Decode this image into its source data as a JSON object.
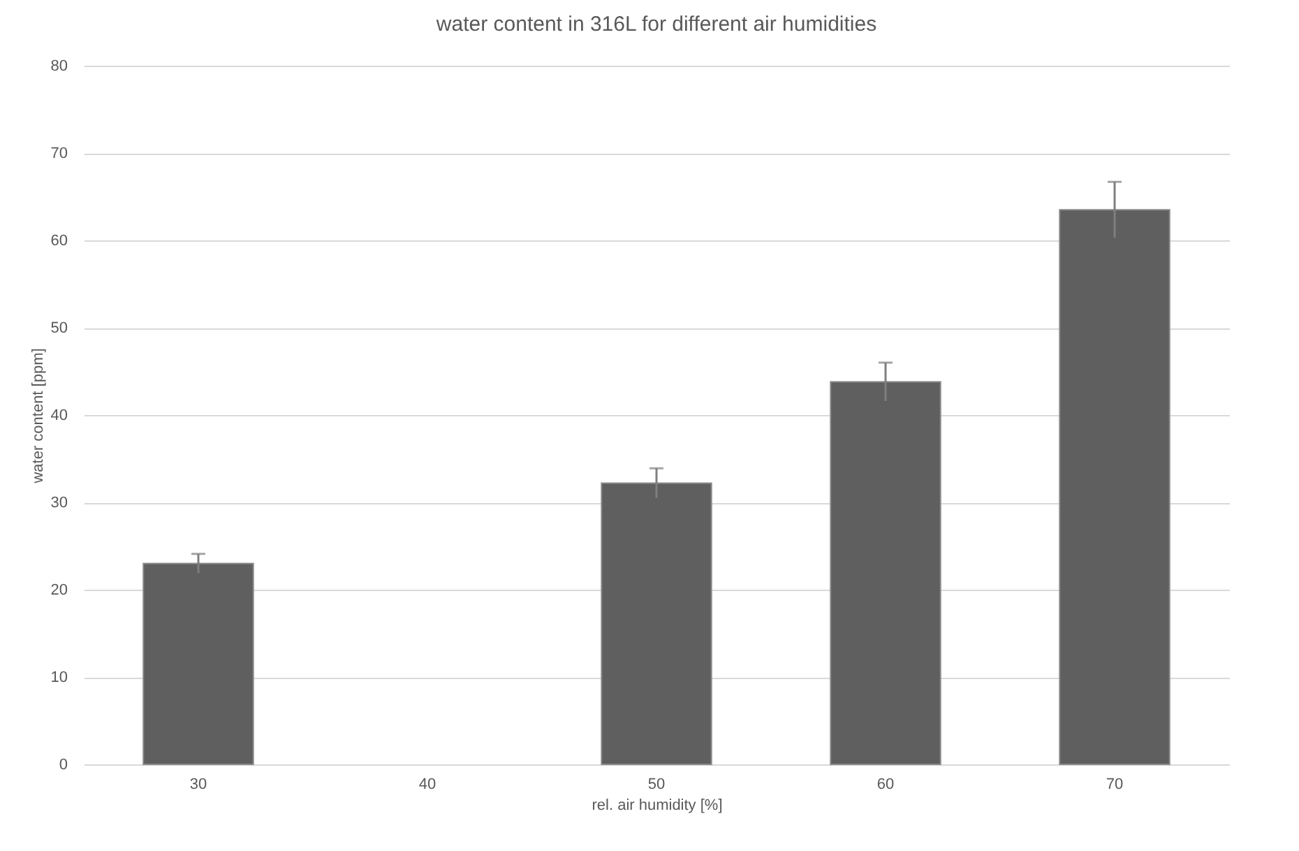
{
  "chart_data": {
    "type": "bar",
    "title": "water content in 316L for different air humidities",
    "xlabel": "rel. air humidity [%]",
    "ylabel": "water content [ppm]",
    "categories": [
      "30",
      "40",
      "50",
      "60",
      "70"
    ],
    "values": [
      23,
      null,
      32.2,
      43.8,
      63.5
    ],
    "errors": [
      1.1,
      null,
      1.7,
      2.2,
      3.2
    ],
    "color": "#5f5f5f",
    "ylim": [
      0,
      80
    ],
    "yticks": [
      0,
      10,
      20,
      30,
      40,
      50,
      60,
      70,
      80
    ],
    "grid": "y"
  }
}
